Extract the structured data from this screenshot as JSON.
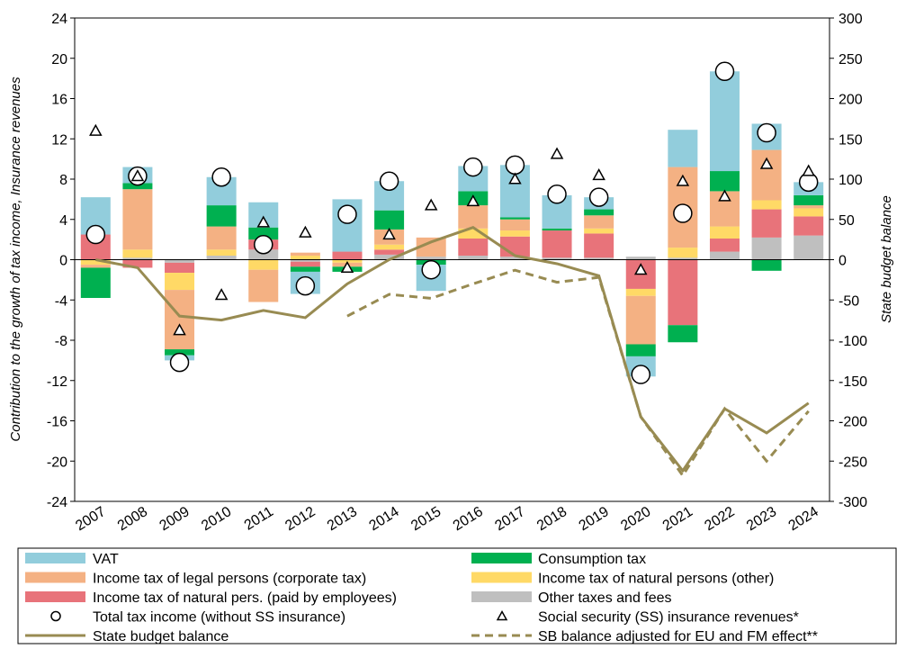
{
  "chart_data": {
    "type": "bar",
    "y_label": "Contribution to the growth of tax income, Insurance revenues",
    "y2_label": "State budget balance",
    "categories": [
      "2007",
      "2008",
      "2009",
      "2010",
      "2011",
      "2012",
      "2013",
      "2014",
      "2015",
      "2016",
      "2017",
      "2018",
      "2019",
      "2020",
      "2021",
      "2022",
      "2023",
      "2024"
    ],
    "ylim": [
      -24,
      24
    ],
    "yticks": [
      -24,
      -20,
      -16,
      -12,
      -8,
      -4,
      0,
      4,
      8,
      12,
      16,
      20,
      24
    ],
    "y2lim": [
      -300,
      300
    ],
    "y2ticks": [
      -300,
      -250,
      -200,
      -150,
      -100,
      -50,
      0,
      50,
      100,
      150,
      200,
      250,
      300
    ],
    "stacked": true,
    "series": [
      {
        "name": "VAT",
        "kind": "bar",
        "color": "#92cddc",
        "values": [
          3.7,
          1.6,
          -0.5,
          2.8,
          2.5,
          -2.2,
          5.2,
          2.9,
          -2.6,
          2.5,
          5.2,
          3.3,
          1.2,
          -2.0,
          3.7,
          9.9,
          2.6,
          1.3
        ]
      },
      {
        "name": "Consumption tax",
        "kind": "bar",
        "color": "#00b050",
        "values": [
          -3.0,
          0.6,
          -0.6,
          2.1,
          1.2,
          -0.5,
          -0.5,
          1.9,
          -0.5,
          1.4,
          0.2,
          0.2,
          0.6,
          -1.2,
          -1.7,
          2.0,
          -1.1,
          1.0
        ]
      },
      {
        "name": "Income tax of legal persons (corporate tax)",
        "kind": "bar",
        "color": "#f4b183",
        "values": [
          -0.3,
          6.0,
          -5.9,
          2.3,
          -3.2,
          0.3,
          -0.4,
          1.5,
          1.9,
          2.3,
          1.1,
          0,
          1.3,
          -4.8,
          8.0,
          3.5,
          5.0,
          0.3
        ]
      },
      {
        "name": "Income tax of natural persons (other)",
        "kind": "bar",
        "color": "#ffd966",
        "values": [
          -0.5,
          0.8,
          -1.7,
          0.6,
          -1.0,
          0.4,
          -0.3,
          0.5,
          0,
          1.0,
          0.6,
          0,
          0.5,
          -0.7,
          1.0,
          1.2,
          0.9,
          0.8
        ]
      },
      {
        "name": "Income tax of natural pers. (paid by employees)",
        "kind": "bar",
        "color": "#e8737a",
        "values": [
          2.5,
          -0.8,
          -1.0,
          0,
          1.0,
          -0.5,
          0.8,
          0.5,
          0,
          1.7,
          2.0,
          2.7,
          2.4,
          -2.9,
          -6.5,
          1.3,
          2.8,
          1.9
        ]
      },
      {
        "name": "Other taxes and fees",
        "kind": "bar",
        "color": "#bfbfbf",
        "values": [
          0,
          0.2,
          -0.3,
          0.4,
          1.0,
          -0.2,
          0,
          0.5,
          0.3,
          0.4,
          0.3,
          0.2,
          0.2,
          0.3,
          0.2,
          0.8,
          2.2,
          2.4
        ]
      },
      {
        "name": "Total tax income (without SS insurance)",
        "kind": "circle",
        "color": "#000000",
        "values": [
          2.5,
          8.3,
          -10.2,
          8.2,
          1.5,
          -2.6,
          4.5,
          7.8,
          -1.0,
          9.2,
          9.4,
          6.5,
          6.2,
          -11.4,
          4.6,
          18.7,
          12.6,
          7.7
        ]
      },
      {
        "name": "Social security (SS) insurance revenues*",
        "kind": "triangle",
        "color": "#000000",
        "values": [
          12.8,
          8.3,
          -7.0,
          -3.5,
          3.7,
          2.7,
          -0.8,
          2.5,
          5.4,
          5.8,
          8.0,
          10.5,
          8.4,
          -1.0,
          7.8,
          6.3,
          9.5,
          8.8
        ]
      },
      {
        "name": "State budget balance",
        "kind": "line",
        "axis": "y2",
        "color": "#988b52",
        "values": [
          0,
          -10,
          -70,
          -75,
          -63,
          -72,
          -30,
          0,
          22,
          40,
          5,
          -5,
          -20,
          -195,
          -262,
          -185,
          -215,
          -178
        ]
      },
      {
        "name": "SB balance adjusted for EU and FM effect**",
        "kind": "dashed",
        "axis": "y2",
        "color": "#988b52",
        "values": [
          null,
          null,
          null,
          null,
          null,
          null,
          -70,
          -43,
          -48,
          -30,
          -13,
          -28,
          -22,
          -195,
          -268,
          -185,
          -250,
          -188
        ]
      }
    ]
  }
}
